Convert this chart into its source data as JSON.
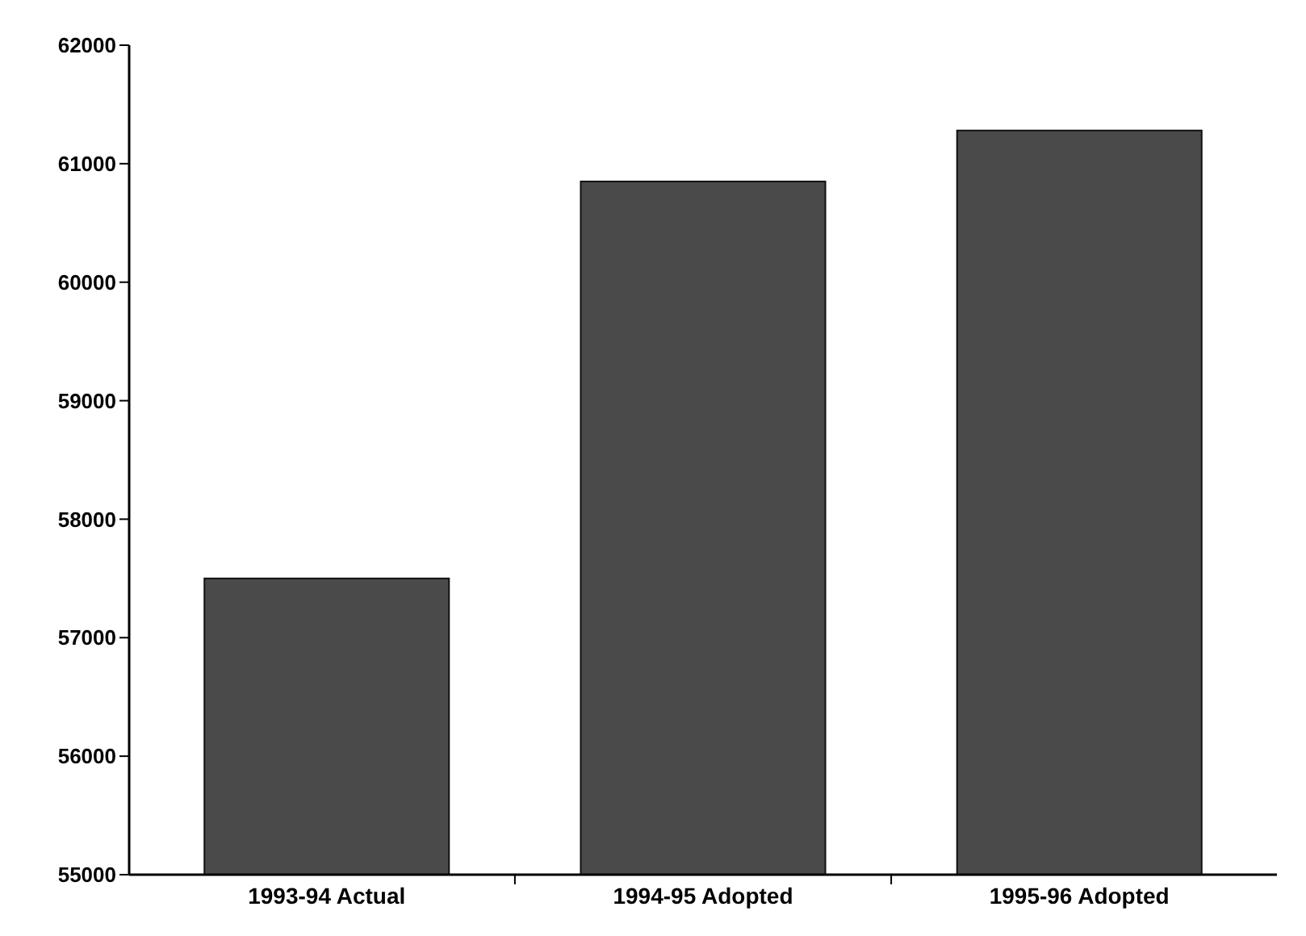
{
  "chart_data": {
    "type": "bar",
    "categories": [
      "1993-94 Actual",
      "1994-95 Adopted",
      "1995-96 Adopted"
    ],
    "values": [
      57500,
      60850,
      61280
    ],
    "color": "#4a4a4a",
    "ylim": [
      55000,
      62000
    ],
    "yticks": [
      55000,
      56000,
      57000,
      58000,
      59000,
      60000,
      61000,
      62000
    ],
    "grid": false
  }
}
